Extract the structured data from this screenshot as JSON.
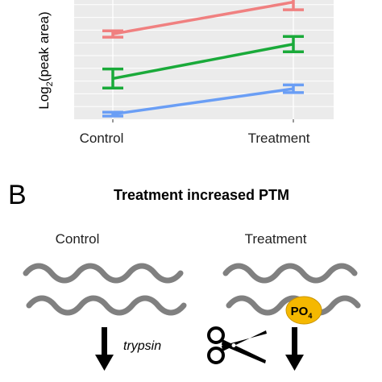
{
  "panel_a": {
    "chart_data": {
      "type": "line",
      "x": [
        "Control",
        "Treatment"
      ],
      "ylabel": "Log",
      "ylabel_sub": "2",
      "ylabel_rest": "(peak area)",
      "grid": true,
      "ylim": [
        0,
        10
      ],
      "series": [
        {
          "color": "#f08080",
          "values": [
            6.7,
            9.2
          ],
          "err": [
            0.25,
            0.6
          ]
        },
        {
          "color": "#1aaa3a",
          "values": [
            3.2,
            5.9
          ],
          "err": [
            0.75,
            0.6
          ]
        },
        {
          "color": "#6a9ef5",
          "values": [
            0.4,
            2.4
          ],
          "err": [
            0.15,
            0.3
          ]
        }
      ]
    }
  },
  "panel_b": {
    "letter": "B",
    "title": "Treatment increased PTM",
    "control_label": "Control",
    "treatment_label": "Treatment",
    "po4_text": "PO",
    "po4_sub": "4",
    "enzyme_label": "trypsin",
    "colors": {
      "strand": "#808080",
      "po4_fill": "#f5b800",
      "arrow": "#000000"
    }
  }
}
